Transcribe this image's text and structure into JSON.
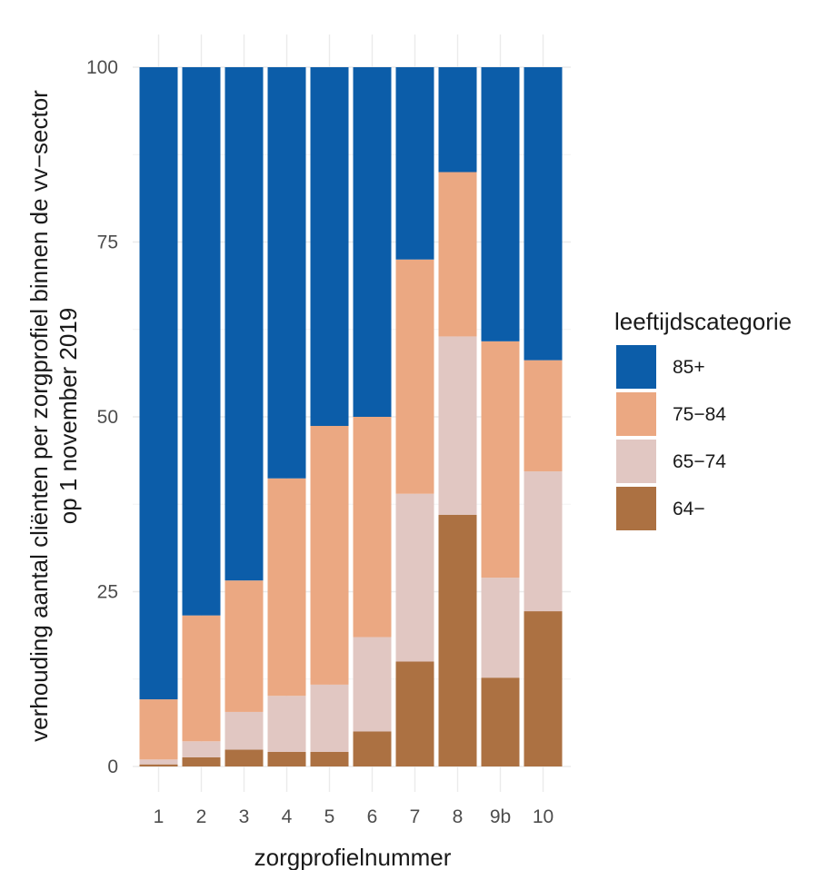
{
  "chart_data": {
    "type": "bar",
    "stacked": true,
    "categories": [
      "1",
      "2",
      "3",
      "4",
      "5",
      "6",
      "7",
      "8",
      "9b",
      "10"
    ],
    "series": [
      {
        "name": "64−",
        "color": "#AC7142",
        "values": [
          0.3,
          1.3,
          2.4,
          2.1,
          2.1,
          5.0,
          15.0,
          36.0,
          12.7,
          22.2
        ]
      },
      {
        "name": "65−74",
        "color": "#E1C7C2",
        "values": [
          0.7,
          2.3,
          5.4,
          8.0,
          9.6,
          13.5,
          24.0,
          25.5,
          14.3,
          20.0
        ]
      },
      {
        "name": "75−84",
        "color": "#EBA882",
        "values": [
          8.6,
          18.0,
          18.8,
          31.1,
          37.0,
          31.5,
          33.5,
          23.5,
          33.8,
          15.9
        ]
      },
      {
        "name": "85+",
        "color": "#0C5DA9",
        "values": [
          90.4,
          78.4,
          73.4,
          58.8,
          51.3,
          50.0,
          27.5,
          15.0,
          39.2,
          41.9
        ]
      }
    ],
    "ylim": [
      0,
      100
    ],
    "yticks": [
      0,
      25,
      50,
      75,
      100
    ],
    "xlabel": "zorgprofielnummer",
    "ylabel_line1": "verhouding aantal cliënten per zorgprofiel binnen de vv−sector",
    "ylabel_line2": "op 1 november 2019",
    "legend": {
      "title": "leeftijdscategorie",
      "position": "right",
      "entries": [
        "85+",
        "75−84",
        "65−74",
        "64−"
      ]
    },
    "grid": true
  }
}
